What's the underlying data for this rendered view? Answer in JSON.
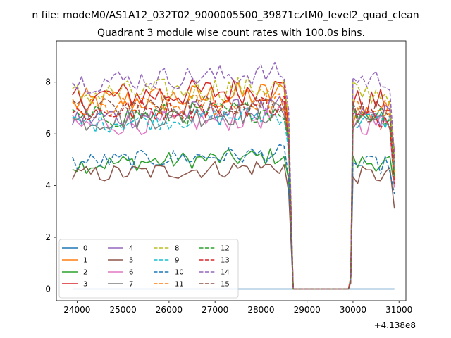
{
  "chart_data": {
    "type": "line",
    "suptitle": "n file: modeM0/AS1A12_032T02_9000005500_39871cztM0_level2_quad_clean",
    "title": "Quadrant 3 module wise count rates with 100.0s bins.",
    "xlabel": "",
    "ylabel": "",
    "x_offset_label": "+4.138e8",
    "xlim": [
      23550,
      31150
    ],
    "ylim": [
      -0.45,
      9.6
    ],
    "x_ticks": [
      24000,
      25000,
      26000,
      27000,
      28000,
      29000,
      30000,
      31000
    ],
    "x_tick_labels": [
      "24000",
      "25000",
      "26000",
      "27000",
      "28000",
      "29000",
      "30000",
      "31000"
    ],
    "y_ticks": [
      0,
      2,
      4,
      6,
      8
    ],
    "y_tick_labels": [
      "0",
      "2",
      "4",
      "6",
      "8"
    ],
    "grid": false,
    "legend_placement": "lower-left",
    "legend_columns": 4,
    "x_start": 23900,
    "x_step": 100,
    "gap": [
      28700,
      29900
    ],
    "series": [
      {
        "name": "0",
        "color": "#1f77b4",
        "dash": "solid",
        "base": 0,
        "amp": 0,
        "tail": 0,
        "flat": true
      },
      {
        "name": "1",
        "color": "#ff7f0e",
        "dash": "solid",
        "base": 7.2,
        "amp": 0.55,
        "tail": 6.8
      },
      {
        "name": "2",
        "color": "#2ca02c",
        "dash": "solid",
        "base": 4.8,
        "amp": 0.35,
        "tail": 4.9
      },
      {
        "name": "3",
        "color": "#d62728",
        "dash": "solid",
        "base": 7.4,
        "amp": 0.55,
        "tail": 7.2
      },
      {
        "name": "4",
        "color": "#9467bd",
        "dash": "solid",
        "base": 6.6,
        "amp": 0.5,
        "tail": 6.7
      },
      {
        "name": "5",
        "color": "#8c564b",
        "dash": "solid",
        "base": 4.4,
        "amp": 0.35,
        "tail": 4.4
      },
      {
        "name": "6",
        "color": "#e377c2",
        "dash": "solid",
        "base": 6.3,
        "amp": 0.45,
        "tail": 6.4
      },
      {
        "name": "7",
        "color": "#7f7f7f",
        "dash": "solid",
        "base": 6.5,
        "amp": 0.45,
        "tail": 6.6
      },
      {
        "name": "8",
        "color": "#bcbd22",
        "dash": "dashed",
        "base": 7.5,
        "amp": 0.5,
        "tail": 7.6
      },
      {
        "name": "9",
        "color": "#17becf",
        "dash": "dashed",
        "base": 6.4,
        "amp": 0.4,
        "tail": 6.5
      },
      {
        "name": "10",
        "color": "#1f77b4",
        "dash": "dashed",
        "base": 4.9,
        "amp": 0.35,
        "tail": 4.8
      },
      {
        "name": "11",
        "color": "#ff7f0e",
        "dash": "dashed",
        "base": 6.9,
        "amp": 0.45,
        "tail": 7.0
      },
      {
        "name": "12",
        "color": "#2ca02c",
        "dash": "dashed",
        "base": 6.6,
        "amp": 0.45,
        "tail": 6.8
      },
      {
        "name": "13",
        "color": "#d62728",
        "dash": "dashed",
        "base": 6.8,
        "amp": 0.45,
        "tail": 6.6
      },
      {
        "name": "14",
        "color": "#9467bd",
        "dash": "dashed",
        "base": 8.0,
        "amp": 0.45,
        "tail": 8.1
      },
      {
        "name": "15",
        "color": "#8c564b",
        "dash": "dashed",
        "base": 6.9,
        "amp": 0.45,
        "tail": 6.9
      }
    ]
  }
}
